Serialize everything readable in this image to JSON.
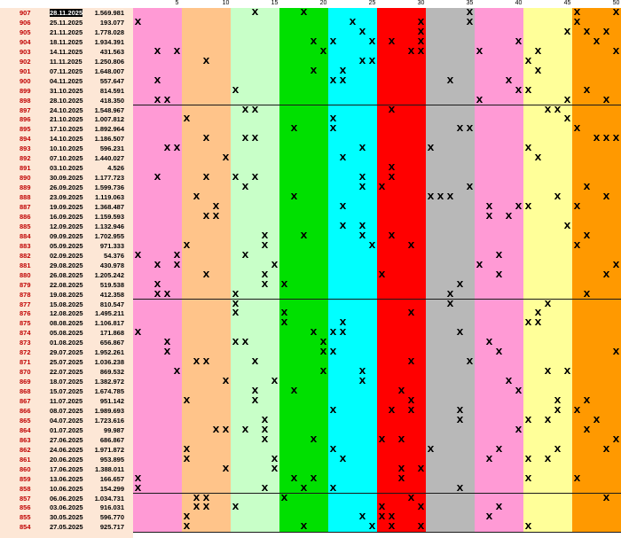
{
  "header_numbers": [
    "5",
    "10",
    "15",
    "20",
    "25",
    "30",
    "35",
    "40",
    "45",
    "50"
  ],
  "colors": {
    "label_bg": "#fde7d6",
    "groups": [
      "#ff9ad5",
      "#ffc48a",
      "#c8ffc8",
      "#00e000",
      "#00ffff",
      "#ff0000",
      "#b8b8b8",
      "#ff9ad5",
      "#ffff99",
      "#ff9900"
    ],
    "label_text": "#c00000"
  },
  "rows": [
    {
      "id": "907",
      "date": "28.11.2025",
      "value": "1.569.981",
      "x": [
        13,
        18,
        35,
        46,
        50
      ]
    },
    {
      "id": "906",
      "date": "25.11.2025",
      "value": "193.077",
      "x": [
        1,
        23,
        30,
        35,
        46
      ]
    },
    {
      "id": "905",
      "date": "21.11.2025",
      "value": "1.778.028",
      "x": [
        24,
        30,
        45,
        47,
        49
      ]
    },
    {
      "id": "904",
      "date": "18.11.2025",
      "value": "1.934.391",
      "x": [
        19,
        21,
        25,
        27,
        30,
        40,
        48
      ]
    },
    {
      "id": "903",
      "date": "14.11.2025",
      "value": "431.563",
      "x": [
        3,
        5,
        20,
        29,
        30,
        36,
        42,
        50
      ]
    },
    {
      "id": "902",
      "date": "11.11.2025",
      "value": "1.250.806",
      "x": [
        8,
        24,
        25,
        41
      ]
    },
    {
      "id": "901",
      "date": "07.11.2025",
      "value": "1.648.007",
      "x": [
        19,
        22,
        42
      ]
    },
    {
      "id": "900",
      "date": "04.11.2025",
      "value": "557.647",
      "x": [
        3,
        21,
        22,
        33,
        39
      ]
    },
    {
      "id": "899",
      "date": "31.10.2025",
      "value": "814.591",
      "x": [
        11,
        40,
        41,
        47
      ]
    },
    {
      "id": "898",
      "date": "28.10.2025",
      "value": "418.350",
      "x": [
        3,
        4,
        36,
        45,
        49
      ]
    },
    {
      "id": "897",
      "date": "24.10.2025",
      "value": "1.548.967",
      "x": [
        12,
        13,
        27,
        43,
        44
      ]
    },
    {
      "id": "896",
      "date": "21.10.2025",
      "value": "1.007.812",
      "x": [
        6,
        21,
        45
      ]
    },
    {
      "id": "895",
      "date": "17.10.2025",
      "value": "1.892.964",
      "x": [
        17,
        21,
        34,
        35,
        46
      ]
    },
    {
      "id": "894",
      "date": "14.10.2025",
      "value": "1.186.507",
      "x": [
        8,
        12,
        13,
        48,
        49,
        50
      ]
    },
    {
      "id": "893",
      "date": "10.10.2025",
      "value": "596.231",
      "x": [
        4,
        5,
        24,
        31,
        41
      ]
    },
    {
      "id": "892",
      "date": "07.10.2025",
      "value": "1.440.027",
      "x": [
        10,
        22,
        42
      ]
    },
    {
      "id": "891",
      "date": "03.10.2025",
      "value": "4.526",
      "x": [
        27
      ]
    },
    {
      "id": "890",
      "date": "30.09.2025",
      "value": "1.177.723",
      "x": [
        3,
        8,
        11,
        13,
        24,
        27
      ]
    },
    {
      "id": "889",
      "date": "26.09.2025",
      "value": "1.599.736",
      "x": [
        12,
        24,
        26,
        35,
        47
      ]
    },
    {
      "id": "888",
      "date": "23.09.2025",
      "value": "1.119.063",
      "x": [
        7,
        17,
        31,
        32,
        33,
        44,
        49
      ]
    },
    {
      "id": "887",
      "date": "19.09.2025",
      "value": "1.368.487",
      "x": [
        9,
        22,
        37,
        40,
        41,
        46
      ]
    },
    {
      "id": "886",
      "date": "16.09.2025",
      "value": "1.159.593",
      "x": [
        8,
        9,
        37,
        39
      ]
    },
    {
      "id": "885",
      "date": "12.09.2025",
      "value": "1.132.946",
      "x": [
        22,
        24,
        45
      ]
    },
    {
      "id": "884",
      "date": "09.09.2025",
      "value": "1.702.955",
      "x": [
        14,
        18,
        24,
        27,
        47
      ]
    },
    {
      "id": "883",
      "date": "05.09.2025",
      "value": "971.333",
      "x": [
        6,
        14,
        25,
        29,
        46
      ]
    },
    {
      "id": "882",
      "date": "02.09.2025",
      "value": "54.376",
      "x": [
        1,
        5,
        12,
        38
      ]
    },
    {
      "id": "881",
      "date": "29.08.2025",
      "value": "430.978",
      "x": [
        3,
        5,
        15,
        36,
        50
      ]
    },
    {
      "id": "880",
      "date": "26.08.2025",
      "value": "1.205.242",
      "x": [
        8,
        14,
        26,
        38,
        49
      ]
    },
    {
      "id": "879",
      "date": "22.08.2025",
      "value": "519.538",
      "x": [
        3,
        14,
        16,
        34
      ]
    },
    {
      "id": "878",
      "date": "19.08.2025",
      "value": "412.358",
      "x": [
        3,
        4,
        11,
        33,
        47
      ]
    },
    {
      "id": "877",
      "date": "15.08.2025",
      "value": "810.547",
      "x": [
        11,
        33,
        43
      ]
    },
    {
      "id": "876",
      "date": "12.08.2025",
      "value": "1.495.211",
      "x": [
        11,
        16,
        29,
        42
      ]
    },
    {
      "id": "875",
      "date": "08.08.2025",
      "value": "1.106.817",
      "x": [
        16,
        22,
        41,
        42
      ]
    },
    {
      "id": "874",
      "date": "05.08.2025",
      "value": "171.868",
      "x": [
        1,
        19,
        21,
        22,
        34
      ]
    },
    {
      "id": "873",
      "date": "01.08.2025",
      "value": "656.867",
      "x": [
        4,
        11,
        12,
        20,
        37
      ]
    },
    {
      "id": "872",
      "date": "29.07.2025",
      "value": "1.952.261",
      "x": [
        4,
        20,
        21,
        38,
        50
      ]
    },
    {
      "id": "871",
      "date": "25.07.2025",
      "value": "1.036.238",
      "x": [
        7,
        8,
        13,
        29,
        35
      ]
    },
    {
      "id": "870",
      "date": "22.07.2025",
      "value": "869.532",
      "x": [
        5,
        20,
        24,
        43,
        45
      ]
    },
    {
      "id": "869",
      "date": "18.07.2025",
      "value": "1.382.972",
      "x": [
        10,
        15,
        24,
        39
      ]
    },
    {
      "id": "868",
      "date": "15.07.2025",
      "value": "1.674.785",
      "x": [
        13,
        17,
        28,
        40
      ]
    },
    {
      "id": "867",
      "date": "11.07.2025",
      "value": "951.142",
      "x": [
        6,
        13,
        29,
        44,
        47
      ]
    },
    {
      "id": "866",
      "date": "08.07.2025",
      "value": "1.989.693",
      "x": [
        21,
        27,
        29,
        34,
        44,
        46
      ]
    },
    {
      "id": "865",
      "date": "04.07.2025",
      "value": "1.723.616",
      "x": [
        14,
        34,
        41,
        43,
        48
      ]
    },
    {
      "id": "864",
      "date": "01.07.2025",
      "value": "99.987",
      "x": [
        9,
        10,
        12,
        14,
        40,
        47
      ]
    },
    {
      "id": "863",
      "date": "27.06.2025",
      "value": "686.867",
      "x": [
        14,
        19,
        26,
        28,
        50
      ]
    },
    {
      "id": "862",
      "date": "24.06.2025",
      "value": "1.971.872",
      "x": [
        6,
        21,
        31,
        38,
        44,
        49
      ]
    },
    {
      "id": "861",
      "date": "20.06.2025",
      "value": "953.895",
      "x": [
        6,
        15,
        22,
        37,
        41,
        43
      ]
    },
    {
      "id": "860",
      "date": "17.06.2025",
      "value": "1.388.011",
      "x": [
        10,
        15,
        28,
        30
      ]
    },
    {
      "id": "859",
      "date": "13.06.2025",
      "value": "166.657",
      "x": [
        1,
        17,
        19,
        28,
        41,
        46
      ]
    },
    {
      "id": "858",
      "date": "10.06.2025",
      "value": "154.299",
      "x": [
        1,
        14,
        18,
        21,
        34
      ]
    },
    {
      "id": "857",
      "date": "06.06.2025",
      "value": "1.034.731",
      "x": [
        7,
        8,
        16,
        29,
        49
      ]
    },
    {
      "id": "856",
      "date": "03.06.2025",
      "value": "916.031",
      "x": [
        7,
        8,
        11,
        26,
        30,
        38
      ]
    },
    {
      "id": "855",
      "date": "30.05.2025",
      "value": "596.770",
      "x": [
        6,
        24,
        26,
        27,
        37
      ]
    },
    {
      "id": "854",
      "date": "27.05.2025",
      "value": "925.717",
      "x": [
        6,
        18,
        25,
        27,
        30,
        41
      ]
    }
  ]
}
